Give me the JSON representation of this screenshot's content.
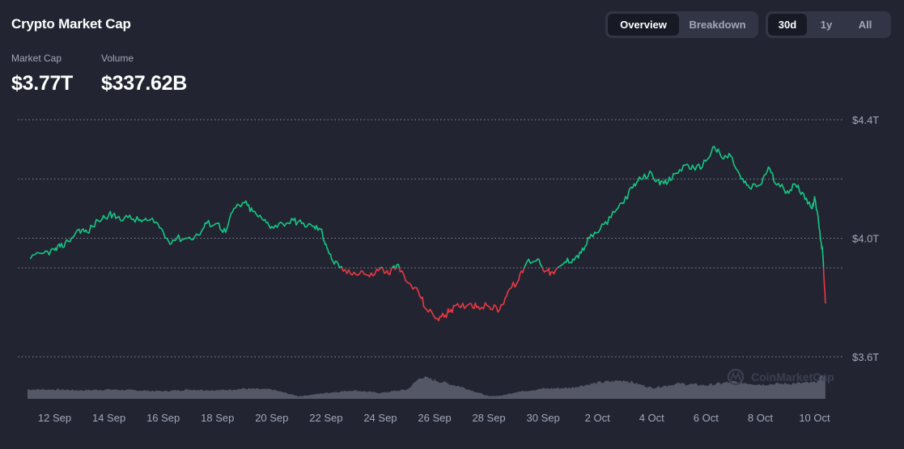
{
  "header": {
    "title": "Crypto Market Cap",
    "view_tabs": [
      {
        "label": "Overview",
        "active": true
      },
      {
        "label": "Breakdown",
        "active": false
      }
    ],
    "range_tabs": [
      {
        "label": "30d",
        "active": true
      },
      {
        "label": "1y",
        "active": false
      },
      {
        "label": "All",
        "active": false
      }
    ]
  },
  "stats": {
    "market_cap": {
      "label": "Market Cap",
      "value": "$3.77T"
    },
    "volume": {
      "label": "Volume",
      "value": "$337.62B"
    }
  },
  "watermark": "CoinMarketCap",
  "colors": {
    "background": "#222531",
    "up": "#16c784",
    "down": "#ea3943",
    "grid": "#a1a7bb",
    "volume": "#5c6070"
  },
  "chart_data": {
    "type": "line",
    "baseline": 3.9,
    "ylim": [
      3.6,
      4.4
    ],
    "yticks": [
      {
        "value": 4.4,
        "label": "$4.4T"
      },
      {
        "value": 4.0,
        "label": "$4.0T"
      },
      {
        "value": 3.6,
        "label": "$3.6T"
      }
    ],
    "xticks": [
      "12 Sep",
      "14 Sep",
      "16 Sep",
      "18 Sep",
      "20 Sep",
      "22 Sep",
      "24 Sep",
      "26 Sep",
      "28 Sep",
      "30 Sep",
      "2 Oct",
      "4 Oct",
      "6 Oct",
      "8 Oct",
      "10 Oct"
    ],
    "xtick_days": [
      1,
      3,
      5,
      7,
      9,
      11,
      13,
      15,
      17,
      19,
      21,
      23,
      25,
      27,
      29
    ],
    "xlim": [
      0,
      30
    ],
    "series": [
      {
        "x": [
          0.1,
          0.6,
          1.0,
          1.2,
          1.5,
          1.9,
          2.2,
          2.6,
          3.0,
          3.3,
          3.7,
          4.1,
          4.4,
          4.8,
          5.2,
          5.5,
          5.9,
          6.3,
          6.6,
          7.0,
          7.3,
          7.6,
          8.0,
          8.3,
          8.7,
          9.0,
          9.4,
          9.8,
          10.1,
          10.5,
          10.8,
          11.0,
          11.2,
          11.5,
          11.9,
          12.3,
          12.6,
          13.0,
          13.3,
          13.6,
          14.0,
          14.4,
          14.7,
          15.1,
          15.4,
          15.6,
          15.9,
          16.3,
          16.6,
          17.0,
          17.4,
          17.7,
          18.1,
          18.4,
          18.8,
          19.1,
          19.4,
          19.8,
          20.1,
          20.4,
          20.7,
          21.1,
          21.5,
          21.9,
          22.3,
          22.6,
          23.0,
          23.3,
          23.6,
          23.9,
          24.3,
          24.6,
          25.0,
          25.3,
          25.6,
          25.9,
          26.3,
          26.6,
          27.0,
          27.3,
          27.6,
          28.0,
          28.3,
          28.6,
          28.9,
          29.0,
          29.2,
          29.3,
          29.4
        ],
        "y": [
          3.93,
          3.95,
          3.96,
          3.97,
          3.99,
          4.03,
          4.02,
          4.06,
          4.08,
          4.07,
          4.07,
          4.06,
          4.06,
          4.05,
          3.99,
          4.0,
          4.0,
          4.01,
          4.05,
          4.05,
          4.02,
          4.1,
          4.12,
          4.09,
          4.06,
          4.04,
          4.05,
          4.06,
          4.05,
          4.04,
          4.03,
          3.98,
          3.93,
          3.9,
          3.88,
          3.89,
          3.87,
          3.9,
          3.88,
          3.91,
          3.85,
          3.82,
          3.76,
          3.73,
          3.74,
          3.76,
          3.77,
          3.78,
          3.77,
          3.77,
          3.76,
          3.82,
          3.86,
          3.92,
          3.93,
          3.89,
          3.88,
          3.92,
          3.93,
          3.95,
          4.0,
          4.03,
          4.07,
          4.12,
          4.17,
          4.2,
          4.22,
          4.18,
          4.19,
          4.22,
          4.25,
          4.23,
          4.26,
          4.31,
          4.27,
          4.28,
          4.2,
          4.17,
          4.18,
          4.24,
          4.18,
          4.16,
          4.18,
          4.15,
          4.1,
          4.14,
          4.02,
          3.95,
          3.78
        ]
      }
    ],
    "volume_ylim": [
      0,
      40
    ],
    "volume_series": {
      "x": [
        0,
        1,
        2,
        3,
        4,
        5,
        6,
        7,
        8,
        9,
        10,
        11,
        12,
        13,
        14,
        14.5,
        15,
        16,
        17,
        17.5,
        18,
        19,
        20,
        21,
        22,
        23,
        24,
        25,
        26,
        27,
        28,
        29,
        29.4
      ],
      "y": [
        11,
        11,
        10,
        11,
        10,
        9,
        11,
        10,
        12,
        11,
        3,
        7,
        10,
        7,
        11,
        26,
        22,
        14,
        3,
        4,
        8,
        12,
        13,
        19,
        22,
        13,
        18,
        16,
        20,
        17,
        18,
        19,
        30
      ]
    }
  }
}
